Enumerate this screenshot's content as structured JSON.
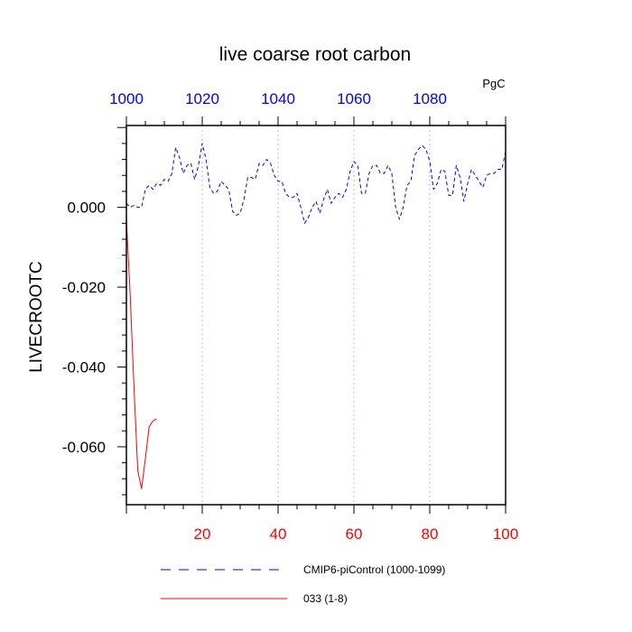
{
  "chart_data": {
    "type": "line",
    "title": "live coarse root carbon",
    "units": "PgC",
    "ylabel": "LIVECROOTC",
    "xlim": [
      0,
      100
    ],
    "ylim": [
      -0.0745,
      0.0205
    ],
    "x_bottom_ticks": [
      {
        "value": 20,
        "label": "20"
      },
      {
        "value": 40,
        "label": "40"
      },
      {
        "value": 60,
        "label": "60"
      },
      {
        "value": 80,
        "label": "80"
      },
      {
        "value": 100,
        "label": "100"
      }
    ],
    "x_top_ticks": [
      {
        "value": 0,
        "label": "1000"
      },
      {
        "value": 20,
        "label": "1020"
      },
      {
        "value": 40,
        "label": "1040"
      },
      {
        "value": 60,
        "label": "1060"
      },
      {
        "value": 80,
        "label": "1080"
      }
    ],
    "y_ticks": [
      {
        "value": 0.0,
        "label": "0.000"
      },
      {
        "value": -0.02,
        "label": "-0.020"
      },
      {
        "value": -0.04,
        "label": "-0.040"
      },
      {
        "value": -0.06,
        "label": "-0.060"
      }
    ],
    "grid": "vertical-dashed",
    "legend_position": "bottom",
    "colors": {
      "top_axis": "#0000ff",
      "bottom_axis": "#ff0000",
      "control": "#0000ff",
      "run": "#ff0000"
    },
    "series": [
      {
        "name": "CMIP6-piControl (1000-1099)",
        "style": "dashed",
        "color": "#0000ff",
        "x": [
          0,
          1,
          2,
          3,
          4,
          5,
          6,
          7,
          8,
          9,
          10,
          11,
          12,
          13,
          14,
          15,
          16,
          17,
          18,
          19,
          20,
          21,
          22,
          23,
          24,
          25,
          26,
          27,
          28,
          29,
          30,
          31,
          32,
          33,
          34,
          35,
          36,
          37,
          38,
          39,
          40,
          41,
          42,
          43,
          44,
          45,
          46,
          47,
          48,
          49,
          50,
          51,
          52,
          53,
          54,
          55,
          56,
          57,
          58,
          59,
          60,
          61,
          62,
          63,
          64,
          65,
          66,
          67,
          68,
          69,
          70,
          71,
          72,
          73,
          74,
          75,
          76,
          77,
          78,
          79,
          80,
          81,
          82,
          83,
          84,
          85,
          86,
          87,
          88,
          89,
          90,
          91,
          92,
          93,
          94,
          95,
          96,
          97,
          98,
          99,
          100
        ],
        "values": [
          0.001,
          0.0,
          0.0005,
          0.0,
          0.0,
          0.0045,
          0.0055,
          0.0045,
          0.006,
          0.0055,
          0.007,
          0.0065,
          0.0085,
          0.015,
          0.0125,
          0.0085,
          0.0105,
          0.011,
          0.007,
          0.0105,
          0.016,
          0.012,
          0.005,
          0.0035,
          0.004,
          0.0065,
          0.0055,
          0.0045,
          -0.001,
          -0.002,
          -0.0015,
          0.002,
          0.0075,
          0.0075,
          0.007,
          0.011,
          0.0105,
          0.012,
          0.011,
          0.008,
          0.0065,
          0.0065,
          0.0035,
          0.0025,
          0.0025,
          0.0035,
          0.0,
          -0.004,
          -0.0025,
          0.0,
          0.0015,
          -0.0015,
          0.002,
          0.0045,
          0.001,
          0.0025,
          0.0035,
          0.0025,
          0.0045,
          0.009,
          0.0115,
          0.0105,
          0.0035,
          0.0035,
          0.0085,
          0.0105,
          0.0105,
          0.0085,
          0.0085,
          0.0105,
          0.0085,
          0.0,
          -0.003,
          0.0,
          0.0055,
          0.0065,
          0.013,
          0.0145,
          0.0155,
          0.0145,
          0.0115,
          0.0045,
          0.006,
          0.0095,
          0.009,
          0.003,
          0.003,
          0.0105,
          0.0075,
          0.0015,
          0.006,
          0.0095,
          0.008,
          0.0065,
          0.005,
          0.008,
          0.0085,
          0.0085,
          0.0095,
          0.0095,
          0.014
        ]
      },
      {
        "name": "033 (1-8)",
        "style": "solid",
        "color": "#ff0000",
        "x": [
          0,
          1,
          2,
          3,
          4,
          5,
          6,
          7,
          8
        ],
        "values": [
          -0.003,
          -0.022,
          -0.045,
          -0.066,
          -0.0705,
          -0.063,
          -0.055,
          -0.0535,
          -0.053
        ]
      }
    ]
  }
}
